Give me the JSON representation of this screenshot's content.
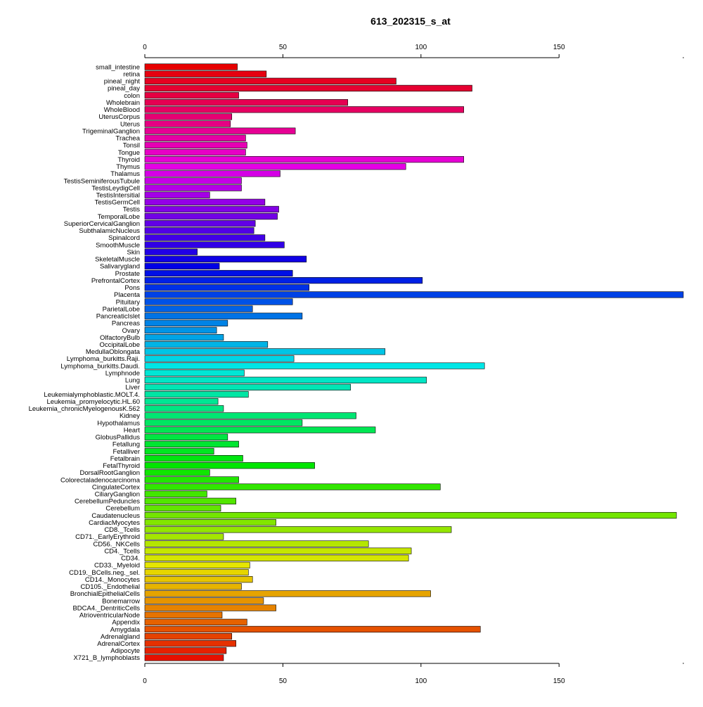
{
  "chart_data": {
    "type": "bar",
    "orientation": "horizontal",
    "title": "613_202315_s_at",
    "xlabel": "",
    "ylabel": "",
    "xlim": [
      0,
      195
    ],
    "xticks": [
      0,
      50,
      100,
      150
    ],
    "grid": false,
    "legend": "none",
    "categories": [
      "small_intestine",
      "retina",
      "pineal_night",
      "pineal_day",
      "colon",
      "Wholebrain",
      "WholeBlood",
      "UterusCorpus",
      "Uterus",
      "TrigeminalGanglion",
      "Trachea",
      "Tonsil",
      "Tongue",
      "Thyroid",
      "Thymus",
      "Thalamus",
      "TestisSeminiferousTubule",
      "TestisLeydigCell",
      "TestisIntersitial",
      "TestisGermCell",
      "Testis",
      "TemporalLobe",
      "SuperiorCervicalGanglion",
      "SubthalamicNucleus",
      "Spinalcord",
      "SmoothMuscle",
      "Skin",
      "SkeletalMuscle",
      "Salivarygland",
      "Prostate",
      "PrefrontalCortex",
      "Pons",
      "Placenta",
      "Pituitary",
      "ParietalLobe",
      "PancreaticIslet",
      "Pancreas",
      "Ovary",
      "OlfactoryBulb",
      "OccipitalLobe",
      "MedullaOblongata",
      "Lymphoma_burkitts.Raji.",
      "Lymphoma_burkitts.Daudi.",
      "Lymphnode",
      "Lung",
      "Liver",
      "Leukemialymphoblastic.MOLT.4.",
      "Leukemia_promyelocytic.HL.60",
      "Leukemia_chronicMyelogenousK.562",
      "Kidney",
      "Hypothalamus",
      "Heart",
      "GlobusPallidus",
      "Fetallung",
      "Fetalliver",
      "Fetalbrain",
      "FetalThyroid",
      "DorsalRootGanglion",
      "Colorectaladenocarcinoma",
      "CingulateCortex",
      "CiliaryGanglion",
      "CerebellumPeduncles",
      "Cerebellum",
      "Caudatenucleus",
      "CardiacMyocytes",
      "CD8._Tcells",
      "CD71._EarlyErythroid",
      "CD56._NKCells",
      "CD4._Tcells",
      "CD34.",
      "CD33._Myeloid",
      "CD19._BCells.neg._sel.",
      "CD14._Monocytes",
      "CD105._Endothelial",
      "BronchialEpithelialCells",
      "Bonemarrow",
      "BDCA4._DentriticCells",
      "AtrioventricularNode",
      "Appendix",
      "Amygdala",
      "Adrenalgland",
      "AdrenalCortex",
      "Adipocyte",
      "X721_B_lymphoblasts"
    ],
    "values": [
      33.5,
      44,
      91,
      118.5,
      34,
      73.5,
      115.5,
      31.5,
      31,
      54.5,
      36.5,
      37,
      36.5,
      115.5,
      94.5,
      49,
      35,
      35,
      23.5,
      43.5,
      48.5,
      48,
      40,
      39.5,
      43.5,
      50.5,
      19,
      58.5,
      27,
      53.5,
      100.5,
      59.5,
      195,
      53.5,
      39,
      57,
      30,
      26,
      28.5,
      44.5,
      87,
      54,
      123,
      36,
      102,
      74.5,
      37.5,
      26.5,
      28.5,
      76.5,
      57,
      83.5,
      30,
      34,
      25,
      35.5,
      61.5,
      23.5,
      34,
      107,
      22.5,
      33,
      27.5,
      192.5,
      47.5,
      111,
      28.5,
      81,
      96.5,
      95.5,
      38,
      37.5,
      39,
      35,
      103.5,
      43,
      47.5,
      28,
      37,
      121.5,
      31.5,
      33,
      29.5,
      28.5
    ]
  }
}
